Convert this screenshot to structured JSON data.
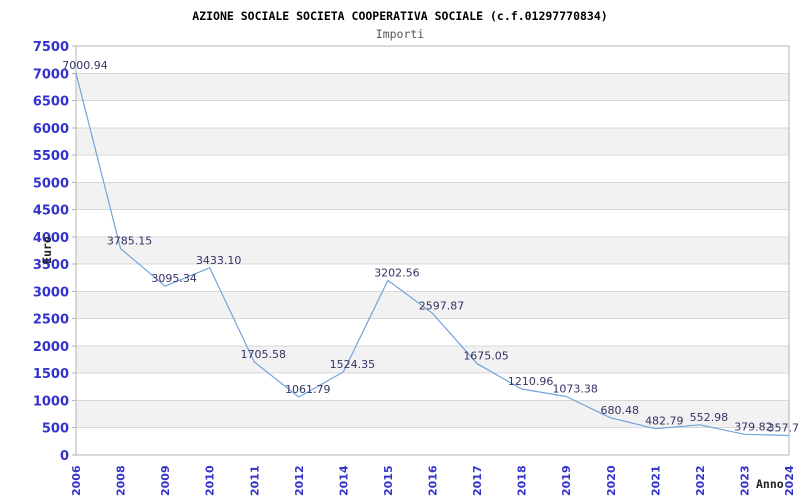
{
  "chart_data": {
    "type": "line",
    "title": "AZIONE SOCIALE SOCIETA COOPERATIVA SOCIALE (c.f.01297770834)",
    "subtitle": "Importi",
    "xlabel": "Anno",
    "ylabel": "Euro",
    "categories": [
      "2006",
      "2008",
      "2009",
      "2010",
      "2011",
      "2012",
      "2014",
      "2015",
      "2016",
      "2017",
      "2018",
      "2019",
      "2020",
      "2021",
      "2022",
      "2023",
      "2024"
    ],
    "values": [
      7000.94,
      3785.15,
      3095.34,
      3433.1,
      1705.58,
      1061.79,
      1524.35,
      3202.56,
      2597.87,
      1675.05,
      1210.96,
      1073.38,
      680.48,
      482.79,
      552.98,
      379.82,
      357.7
    ],
    "point_labels": [
      "7000.94",
      "3785.15",
      "3095.34",
      "3433.10",
      "1705.58",
      "1061.79",
      "1524.35",
      "3202.56",
      "2597.87",
      "1675.05",
      "1210.96",
      "1073.38",
      "680.48",
      "482.79",
      "552.98",
      "379.82",
      "357.7"
    ],
    "ylim": [
      0,
      7500
    ],
    "ytick_step": 500,
    "grid": true,
    "alternating_bands": true,
    "legend": "none",
    "colors": {
      "line": "#74a3dc",
      "tick_labels": "#3333cc",
      "point_labels": "#333366",
      "band": "#f2f2f2",
      "gridline": "#d8d8d8",
      "border": "#b3b3b3",
      "axis_title": "#222222",
      "title": "#000000",
      "subtitle": "#555555",
      "background": "#ffffff"
    }
  }
}
